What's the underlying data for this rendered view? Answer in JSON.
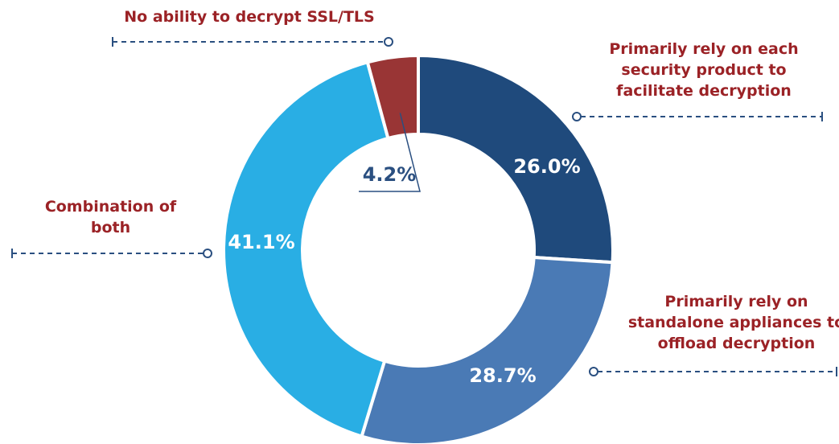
{
  "chart_data": {
    "type": "donut",
    "categories": [
      "Primarily rely on each security product to facilitate decryption",
      "Primarily rely on standalone appliances to offload decryption",
      "Combination of both",
      "No ability to decrypt SSL/TLS"
    ],
    "values": [
      26.0,
      28.7,
      41.1,
      4.2
    ],
    "value_labels": [
      "26.0%",
      "28.7%",
      "41.1%",
      "4.2%"
    ],
    "colors": [
      "#1f4a7c",
      "#4a7ab5",
      "#29aee4",
      "#993535"
    ]
  }
}
